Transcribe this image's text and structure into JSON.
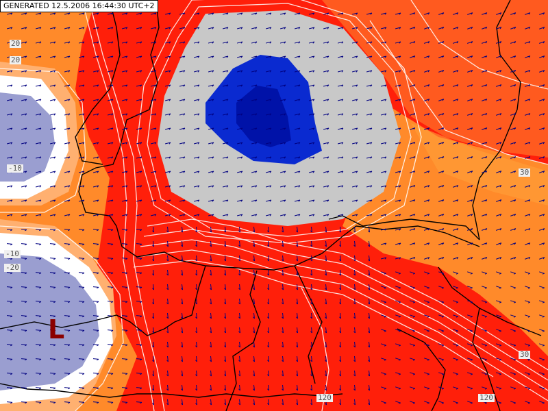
{
  "header": {
    "generated": "GENERATED 12.5.2006 16:44:30 UTC+2"
  },
  "pressure_center": {
    "label": "L",
    "color": "#8b0000"
  },
  "contour_labels": {
    "left_1": "20",
    "left_2": "20",
    "left_3": "-10",
    "left_4": "-10",
    "left_5": "-20",
    "right_1": "30",
    "right_2": "30",
    "bottom_1": "120",
    "bottom_2": "120"
  },
  "colors": {
    "red": "#ff1f0a",
    "orange_red": "#ff5a1f",
    "orange": "#ff8a2a",
    "light_orange": "#ffa03a",
    "pale_orange": "#ffb070",
    "grey": "#c8c8c8",
    "blue": "#0a2ad0",
    "light_blue": "#9a9ed0",
    "border": "#000000",
    "contour": "#ffffff",
    "wind_arrow": "#000080"
  }
}
